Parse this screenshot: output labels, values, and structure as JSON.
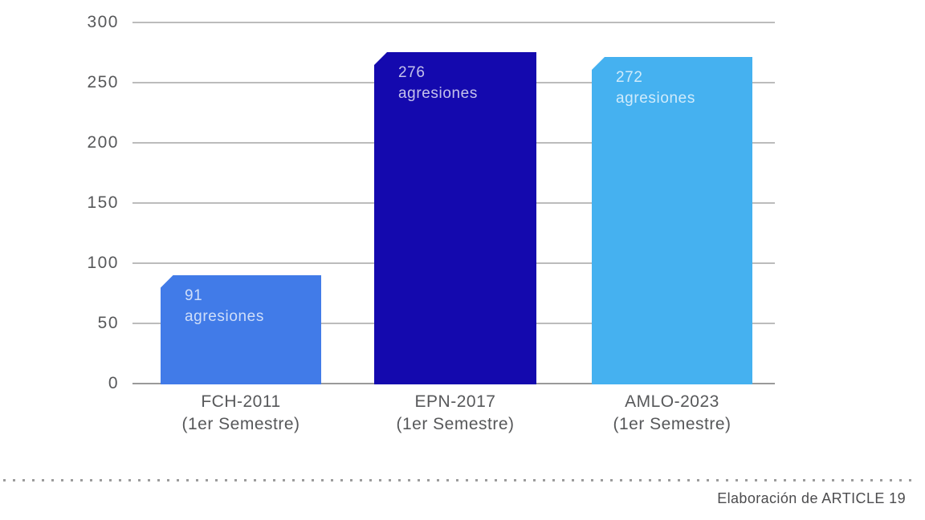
{
  "caption": "Elaboración de ARTICLE 19",
  "chart_data": {
    "type": "bar",
    "title": "",
    "xlabel": "",
    "ylabel": "",
    "categories": [
      {
        "line1": "FCH-2011",
        "line2": "(1er Semestre)"
      },
      {
        "line1": "EPN-2017",
        "line2": "(1er Semestre)"
      },
      {
        "line1": "AMLO-2023",
        "line2": "(1er Semestre)"
      }
    ],
    "values": [
      91,
      276,
      272
    ],
    "bar_labels": [
      {
        "value": "91",
        "unit": "agresiones"
      },
      {
        "value": "276",
        "unit": "agresiones"
      },
      {
        "value": "272",
        "unit": "agresiones"
      }
    ],
    "bar_colors": [
      "#417BE8",
      "#1409AE",
      "#45B1F0"
    ],
    "ylim": [
      0,
      300
    ],
    "yticks": [
      0,
      50,
      100,
      150,
      200,
      250,
      300
    ],
    "grid": "horizontal",
    "legend": "none"
  }
}
